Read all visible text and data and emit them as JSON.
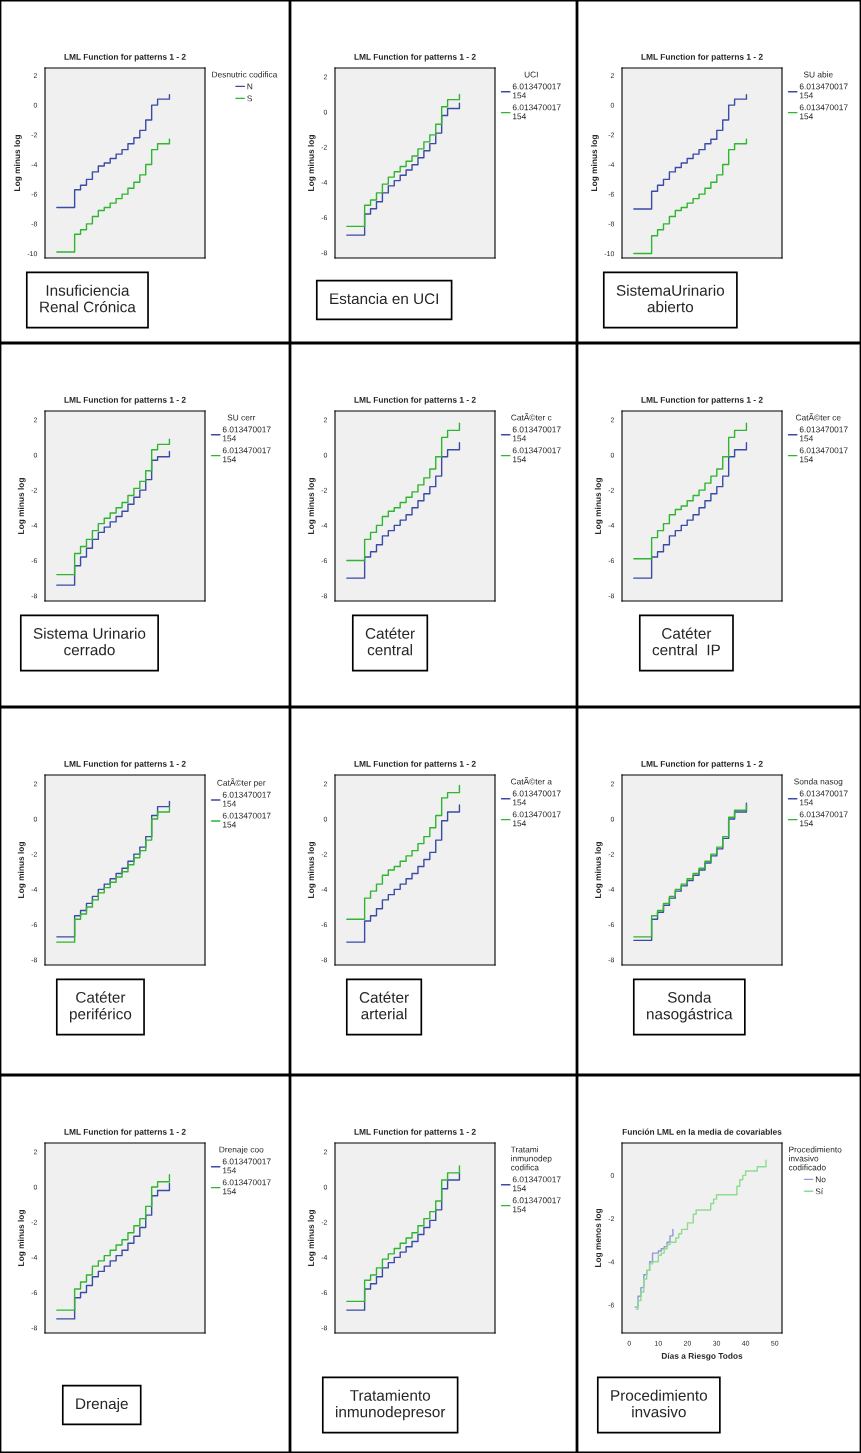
{
  "chart_data": [
    {
      "type": "step",
      "title": "LML Function for patterns 1 - 2",
      "ylabel": "Log minus log",
      "legend_title": "Desnutric codifica",
      "legend": "right",
      "tick_labels": "y",
      "ylim": [
        -10.3,
        2.5
      ],
      "yticks": [
        -10,
        -8,
        -6,
        -4,
        -2,
        0,
        2
      ],
      "annotations": [
        "Insuficiencia\nRenal Crónica"
      ],
      "categories": [
        null,
        null,
        null,
        null,
        null,
        null,
        null,
        null,
        null,
        null,
        null,
        null,
        null,
        null,
        null,
        null,
        null,
        null,
        null,
        null
      ],
      "series": [
        {
          "name": "N",
          "color": "#3a4aa6",
          "values": [
            -6.9,
            -6.9,
            -6.9,
            -5.7,
            -5.4,
            -5.0,
            -4.5,
            -4.1,
            -3.9,
            -3.6,
            -3.3,
            -3.0,
            -2.6,
            -2.2,
            -1.7,
            -1.0,
            0.0,
            0.4,
            0.4,
            0.7
          ]
        },
        {
          "name": "S",
          "color": "#2fb52f",
          "values": [
            -9.9,
            -9.9,
            -9.9,
            -8.7,
            -8.4,
            -8.0,
            -7.5,
            -7.1,
            -6.9,
            -6.6,
            -6.3,
            -6.0,
            -5.6,
            -5.2,
            -4.7,
            -4.0,
            -3.0,
            -2.6,
            -2.6,
            -2.3
          ]
        }
      ]
    },
    {
      "type": "step",
      "title": "LML Function for patterns 1 - 2",
      "ylabel": "Log minus log",
      "legend_title": "UCI",
      "legend": "right",
      "tick_labels": "y",
      "ylim": [
        -8.3,
        2.5
      ],
      "yticks": [
        -8,
        -6,
        -4,
        -2,
        0,
        2
      ],
      "annotations": [
        "Estancia en UCI"
      ],
      "categories": [
        null,
        null,
        null,
        null,
        null,
        null,
        null,
        null,
        null,
        null,
        null,
        null,
        null,
        null,
        null,
        null,
        null,
        null,
        null,
        null
      ],
      "series": [
        {
          "name": "6.013470017\n154",
          "color": "#3a4aa6",
          "values": [
            -7.0,
            -7.0,
            -7.0,
            -5.8,
            -5.5,
            -5.1,
            -4.6,
            -4.2,
            -3.9,
            -3.6,
            -3.3,
            -3.0,
            -2.6,
            -2.2,
            -1.8,
            -1.2,
            -0.2,
            0.2,
            0.2,
            0.5
          ]
        },
        {
          "name": "6.013470017\n154",
          "color": "#2fb52f",
          "values": [
            -6.5,
            -6.5,
            -6.5,
            -5.3,
            -5.0,
            -4.6,
            -4.1,
            -3.7,
            -3.4,
            -3.1,
            -2.8,
            -2.5,
            -2.1,
            -1.7,
            -1.3,
            -0.7,
            0.3,
            0.7,
            0.7,
            1.0
          ]
        }
      ]
    },
    {
      "type": "step",
      "title": "LML Function for patterns 1 - 2",
      "ylabel": "Log minus log",
      "legend_title": "SU abie",
      "legend": "right",
      "tick_labels": "y",
      "ylim": [
        -10.3,
        2.5
      ],
      "yticks": [
        -10,
        -8,
        -6,
        -4,
        -2,
        0,
        2
      ],
      "annotations": [
        "SistemaUrinario\nabierto"
      ],
      "categories": [
        null,
        null,
        null,
        null,
        null,
        null,
        null,
        null,
        null,
        null,
        null,
        null,
        null,
        null,
        null,
        null,
        null,
        null,
        null,
        null
      ],
      "series": [
        {
          "name": "6.013470017\n154",
          "color": "#3a4aa6",
          "values": [
            -7.0,
            -7.0,
            -7.0,
            -5.8,
            -5.4,
            -5.0,
            -4.5,
            -4.2,
            -3.9,
            -3.6,
            -3.3,
            -3.0,
            -2.6,
            -2.3,
            -1.7,
            -1.0,
            0.0,
            0.4,
            0.4,
            0.7
          ]
        },
        {
          "name": "6.013470017\n154",
          "color": "#2fb52f",
          "values": [
            -10.0,
            -10.0,
            -10.0,
            -8.8,
            -8.4,
            -8.0,
            -7.5,
            -7.1,
            -6.9,
            -6.6,
            -6.3,
            -6.0,
            -5.6,
            -5.2,
            -4.7,
            -4.0,
            -3.0,
            -2.6,
            -2.6,
            -2.3
          ]
        }
      ]
    },
    {
      "type": "step",
      "title": "LML Function for patterns 1 - 2",
      "ylabel": "Log minus log",
      "legend_title": "SU cerr",
      "legend": "right",
      "tick_labels": "y",
      "ylim": [
        -8.3,
        2.5
      ],
      "yticks": [
        -8,
        -6,
        -4,
        -2,
        0,
        2
      ],
      "annotations": [
        "Sistema Urinario\ncerrado"
      ],
      "categories": [
        null,
        null,
        null,
        null,
        null,
        null,
        null,
        null,
        null,
        null,
        null,
        null,
        null,
        null,
        null,
        null,
        null,
        null,
        null,
        null
      ],
      "series": [
        {
          "name": "6.013470017\n154",
          "color": "#3a4aa6",
          "values": [
            -7.4,
            -7.4,
            -7.4,
            -6.3,
            -5.8,
            -5.3,
            -4.8,
            -4.4,
            -4.1,
            -3.8,
            -3.5,
            -3.2,
            -2.8,
            -2.4,
            -2.0,
            -1.4,
            -0.3,
            -0.1,
            -0.1,
            0.2
          ]
        },
        {
          "name": "6.013470017\n154",
          "color": "#2fb52f",
          "values": [
            -6.8,
            -6.8,
            -6.8,
            -5.6,
            -5.2,
            -4.8,
            -4.3,
            -3.9,
            -3.6,
            -3.3,
            -3.0,
            -2.7,
            -2.3,
            -1.9,
            -1.5,
            -0.9,
            0.3,
            0.6,
            0.6,
            0.9
          ]
        }
      ]
    },
    {
      "type": "step",
      "title": "LML Function for patterns 1 - 2",
      "ylabel": "Log minus log",
      "legend_title": "CatÃ©ter c",
      "legend": "right",
      "tick_labels": "y",
      "ylim": [
        -8.3,
        2.5
      ],
      "yticks": [
        -8,
        -6,
        -4,
        -2,
        0,
        2
      ],
      "annotations": [
        "Catéter\ncentral"
      ],
      "categories": [
        null,
        null,
        null,
        null,
        null,
        null,
        null,
        null,
        null,
        null,
        null,
        null,
        null,
        null,
        null,
        null,
        null,
        null,
        null,
        null
      ],
      "series": [
        {
          "name": "6.013470017\n154",
          "color": "#3a4aa6",
          "values": [
            -7.0,
            -7.0,
            -7.0,
            -5.8,
            -5.5,
            -5.1,
            -4.6,
            -4.3,
            -4.0,
            -3.7,
            -3.4,
            -3.0,
            -2.6,
            -2.2,
            -1.8,
            -1.2,
            -0.1,
            0.3,
            0.3,
            0.7
          ]
        },
        {
          "name": "6.013470017\n154",
          "color": "#2fb52f",
          "values": [
            -6.0,
            -6.0,
            -6.0,
            -4.8,
            -4.4,
            -4.0,
            -3.5,
            -3.2,
            -3.0,
            -2.7,
            -2.4,
            -2.1,
            -1.7,
            -1.3,
            -0.8,
            -0.1,
            1.0,
            1.4,
            1.4,
            1.8
          ]
        }
      ]
    },
    {
      "type": "step",
      "title": "LML Function for patterns 1 - 2",
      "ylabel": "Log minus log",
      "legend_title": "CatÃ©ter ce",
      "legend": "right",
      "tick_labels": "y",
      "ylim": [
        -8.3,
        2.5
      ],
      "yticks": [
        -8,
        -6,
        -4,
        -2,
        0,
        2
      ],
      "annotations": [
        "Catéter\ncentral  IP"
      ],
      "categories": [
        null,
        null,
        null,
        null,
        null,
        null,
        null,
        null,
        null,
        null,
        null,
        null,
        null,
        null,
        null,
        null,
        null,
        null,
        null,
        null
      ],
      "series": [
        {
          "name": "6.013470017\n154",
          "color": "#3a4aa6",
          "values": [
            -7.0,
            -7.0,
            -7.0,
            -5.8,
            -5.5,
            -5.1,
            -4.6,
            -4.3,
            -4.0,
            -3.7,
            -3.4,
            -3.0,
            -2.6,
            -2.2,
            -1.8,
            -1.2,
            -0.1,
            0.3,
            0.3,
            0.7
          ]
        },
        {
          "name": "6.013470017\n154",
          "color": "#2fb52f",
          "values": [
            -5.9,
            -5.9,
            -5.9,
            -4.7,
            -4.3,
            -3.9,
            -3.4,
            -3.1,
            -2.9,
            -2.6,
            -2.3,
            -2.0,
            -1.6,
            -1.2,
            -0.8,
            -0.1,
            1.0,
            1.4,
            1.4,
            1.8
          ]
        }
      ]
    },
    {
      "type": "step",
      "title": "LML Function for patterns 1 - 2",
      "ylabel": "Log minus log",
      "legend_title": "CatÃ©ter per",
      "legend": "right",
      "tick_labels": "y",
      "ylim": [
        -8.3,
        2.5
      ],
      "yticks": [
        -8,
        -6,
        -4,
        -2,
        0,
        2
      ],
      "annotations": [
        "Catéter\nperiférico"
      ],
      "categories": [
        null,
        null,
        null,
        null,
        null,
        null,
        null,
        null,
        null,
        null,
        null,
        null,
        null,
        null,
        null,
        null,
        null,
        null,
        null,
        null
      ],
      "series": [
        {
          "name": "6.013470017\n154",
          "color": "#3a4aa6",
          "values": [
            -6.7,
            -6.7,
            -6.7,
            -5.5,
            -5.2,
            -4.8,
            -4.4,
            -4.0,
            -3.7,
            -3.4,
            -3.1,
            -2.8,
            -2.4,
            -2.0,
            -1.6,
            -1.0,
            0.2,
            0.7,
            0.7,
            1.0
          ]
        },
        {
          "name": "6.013470017\n154",
          "color": "#2fb52f",
          "values": [
            -7.0,
            -7.0,
            -7.0,
            -5.7,
            -5.4,
            -5.0,
            -4.6,
            -4.2,
            -3.9,
            -3.6,
            -3.3,
            -3.0,
            -2.6,
            -2.2,
            -1.8,
            -1.2,
            0.0,
            0.4,
            0.4,
            0.7
          ]
        }
      ]
    },
    {
      "type": "step",
      "title": "LML Function for patterns 1 - 2",
      "ylabel": "Log minus log",
      "legend_title": "CatÃ©ter a",
      "legend": "right",
      "tick_labels": "y",
      "ylim": [
        -8.3,
        2.5
      ],
      "yticks": [
        -8,
        -6,
        -4,
        -2,
        0,
        2
      ],
      "annotations": [
        "Catéter\narterial"
      ],
      "categories": [
        null,
        null,
        null,
        null,
        null,
        null,
        null,
        null,
        null,
        null,
        null,
        null,
        null,
        null,
        null,
        null,
        null,
        null,
        null,
        null
      ],
      "series": [
        {
          "name": "6.013470017\n154",
          "color": "#3a4aa6",
          "values": [
            -7.0,
            -7.0,
            -7.0,
            -5.8,
            -5.5,
            -5.1,
            -4.6,
            -4.3,
            -4.0,
            -3.7,
            -3.4,
            -3.1,
            -2.7,
            -2.3,
            -1.9,
            -1.2,
            -0.1,
            0.4,
            0.4,
            0.8
          ]
        },
        {
          "name": "6.013470017\n154",
          "color": "#2fb52f",
          "values": [
            -5.7,
            -5.7,
            -5.7,
            -4.5,
            -4.1,
            -3.7,
            -3.2,
            -2.9,
            -2.7,
            -2.4,
            -2.1,
            -1.8,
            -1.4,
            -1.0,
            -0.5,
            0.2,
            1.2,
            1.5,
            1.5,
            1.9
          ]
        }
      ]
    },
    {
      "type": "step",
      "title": "LML Function for patterns 1 - 2",
      "ylabel": "Log minus log",
      "legend_title": "Sonda nasog",
      "legend": "right",
      "tick_labels": "y",
      "ylim": [
        -8.3,
        2.5
      ],
      "yticks": [
        -8,
        -6,
        -4,
        -2,
        0,
        2
      ],
      "annotations": [
        "Sonda\nnasogástrica"
      ],
      "categories": [
        null,
        null,
        null,
        null,
        null,
        null,
        null,
        null,
        null,
        null,
        null,
        null,
        null,
        null,
        null,
        null,
        null,
        null,
        null,
        null
      ],
      "series": [
        {
          "name": "6.013470017\n154",
          "color": "#3a4aa6",
          "values": [
            -6.9,
            -6.9,
            -6.9,
            -5.7,
            -5.3,
            -4.9,
            -4.5,
            -4.1,
            -3.8,
            -3.5,
            -3.2,
            -2.9,
            -2.5,
            -2.1,
            -1.7,
            -1.1,
            0.0,
            0.4,
            0.4,
            0.9
          ]
        },
        {
          "name": "6.013470017\n154",
          "color": "#2fb52f",
          "values": [
            -6.7,
            -6.7,
            -6.7,
            -5.5,
            -5.2,
            -4.8,
            -4.4,
            -4.0,
            -3.7,
            -3.4,
            -3.1,
            -2.8,
            -2.4,
            -2.0,
            -1.6,
            -1.0,
            0.1,
            0.5,
            0.5,
            0.8
          ]
        }
      ]
    },
    {
      "type": "step",
      "title": "LML Function for patterns 1 - 2",
      "ylabel": "Log minus log",
      "legend_title": "Drenaje coo",
      "legend": "right",
      "tick_labels": "y",
      "ylim": [
        -8.3,
        2.5
      ],
      "yticks": [
        -8,
        -6,
        -4,
        -2,
        0,
        2
      ],
      "annotations": [
        "Drenaje"
      ],
      "categories": [
        null,
        null,
        null,
        null,
        null,
        null,
        null,
        null,
        null,
        null,
        null,
        null,
        null,
        null,
        null,
        null,
        null,
        null,
        null,
        null
      ],
      "series": [
        {
          "name": "6.013470017\n154",
          "color": "#3a4aa6",
          "values": [
            -7.5,
            -7.5,
            -7.5,
            -6.3,
            -6.0,
            -5.6,
            -5.1,
            -4.8,
            -4.5,
            -4.2,
            -3.9,
            -3.6,
            -3.2,
            -2.8,
            -2.3,
            -1.6,
            -0.5,
            -0.2,
            -0.2,
            0.2
          ]
        },
        {
          "name": "6.013470017\n154",
          "color": "#2fb52f",
          "values": [
            -7.0,
            -7.0,
            -7.0,
            -5.8,
            -5.4,
            -5.0,
            -4.5,
            -4.2,
            -3.9,
            -3.6,
            -3.3,
            -3.0,
            -2.6,
            -2.2,
            -1.8,
            -1.1,
            0.0,
            0.3,
            0.3,
            0.7
          ]
        }
      ]
    },
    {
      "type": "step",
      "title": "LML Function for patterns 1 - 2",
      "ylabel": "Log minus log",
      "legend_title": "Tratami\ninmunodep\ncodifica",
      "legend": "right",
      "tick_labels": "y",
      "ylim": [
        -8.3,
        2.5
      ],
      "yticks": [
        -8,
        -6,
        -4,
        -2,
        0,
        2
      ],
      "annotations": [
        "Tratamiento\ninmunodepresor"
      ],
      "categories": [
        null,
        null,
        null,
        null,
        null,
        null,
        null,
        null,
        null,
        null,
        null,
        null,
        null,
        null,
        null,
        null,
        null,
        null,
        null,
        null
      ],
      "series": [
        {
          "name": "6.013470017\n154",
          "color": "#3a4aa6",
          "values": [
            -7.0,
            -7.0,
            -7.0,
            -5.8,
            -5.5,
            -5.1,
            -4.6,
            -4.3,
            -4.0,
            -3.7,
            -3.4,
            -3.1,
            -2.7,
            -2.3,
            -1.9,
            -1.3,
            -0.1,
            0.4,
            0.4,
            0.8
          ]
        },
        {
          "name": "6.013470017\n154",
          "color": "#2fb52f",
          "values": [
            -6.5,
            -6.5,
            -6.5,
            -5.3,
            -5.0,
            -4.6,
            -4.1,
            -3.8,
            -3.5,
            -3.2,
            -2.9,
            -2.6,
            -2.2,
            -1.8,
            -1.4,
            -0.8,
            0.4,
            0.8,
            0.8,
            1.2
          ]
        }
      ]
    },
    {
      "type": "step",
      "title": "Función LML en la media de covariables",
      "xlabel": "Días a Riesgo Todos",
      "ylabel": "Log menos log",
      "legend_title": "Procedimiento\ninvasivo\ncodificado",
      "legend": "right",
      "xlim": [
        -2.5,
        52.5
      ],
      "xticks": [
        0,
        10,
        20,
        30,
        40,
        50
      ],
      "ylim": [
        -7.3,
        1.5
      ],
      "yticks": [
        -6,
        -4,
        -2,
        0
      ],
      "annotations": [
        "Procedimiento\ninvasivo"
      ],
      "series": [
        {
          "name": "No",
          "color": "#8b9ad6",
          "x": [
            2,
            3,
            4,
            5,
            6,
            7,
            8,
            10,
            11,
            12,
            13,
            14,
            15
          ],
          "values": [
            -6.1,
            -5.6,
            -5.2,
            -4.6,
            -4.4,
            -4.0,
            -3.6,
            -3.5,
            -3.4,
            -3.3,
            -3.1,
            -2.8,
            -2.5
          ]
        },
        {
          "name": "Sí",
          "color": "#8edc8e",
          "x": [
            2.5,
            3,
            4,
            5,
            6,
            7,
            8,
            10,
            11,
            12,
            13,
            14,
            16,
            17,
            18,
            20,
            22,
            23,
            28,
            29,
            30,
            37,
            38,
            39,
            40,
            44,
            47
          ],
          "values": [
            -6.2,
            -5.8,
            -5.4,
            -4.8,
            -4.4,
            -4.1,
            -4.0,
            -3.7,
            -3.6,
            -3.4,
            -3.2,
            -3.1,
            -2.9,
            -2.7,
            -2.5,
            -2.2,
            -1.8,
            -1.6,
            -1.3,
            -1.1,
            -0.9,
            -0.5,
            -0.2,
            0.0,
            0.2,
            0.4,
            0.7
          ]
        }
      ]
    }
  ]
}
